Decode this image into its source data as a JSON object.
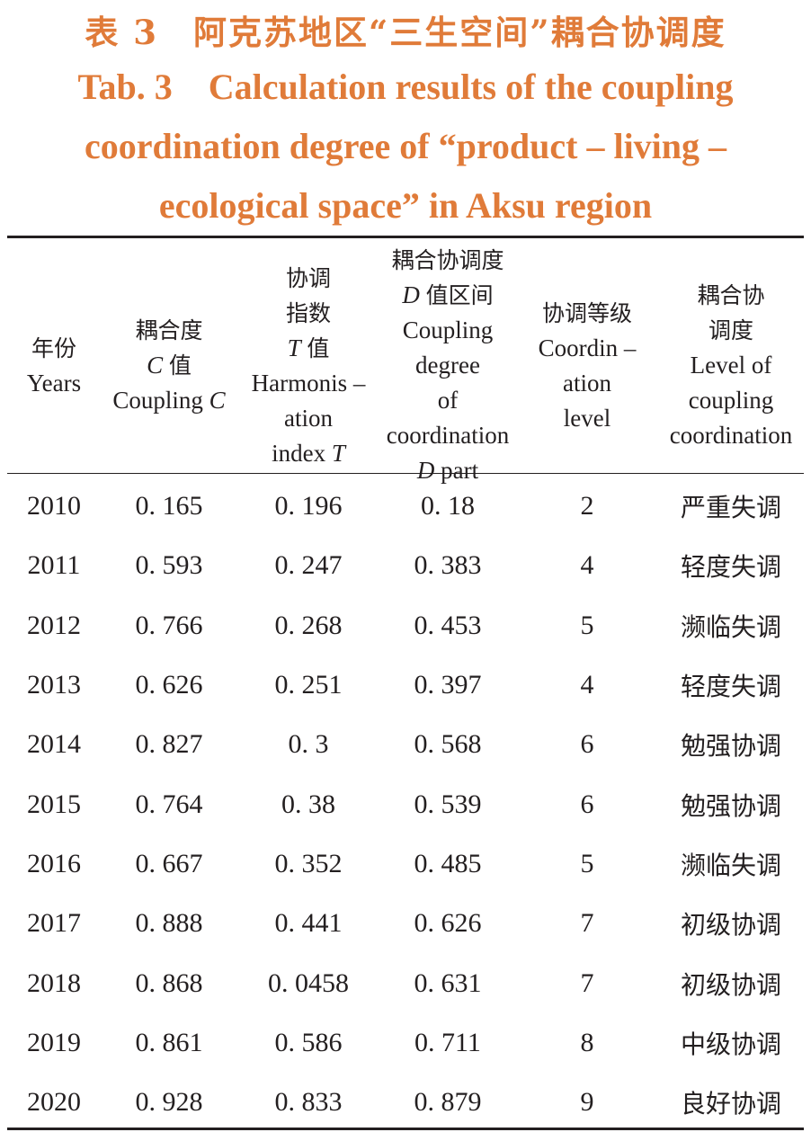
{
  "title": {
    "cn": "表 3　阿克苏地区“三生空间”耦合协调度",
    "en": "Tab. 3　Calculation results of the coupling coordination degree of “product – living – ecological space” in Aksu region"
  },
  "headers": {
    "year": {
      "cn": "年份",
      "en": "Years"
    },
    "coupling": {
      "cn1": "耦合度",
      "var": "C",
      "cn2": "值",
      "en": "Coupling",
      "en_var": "C"
    },
    "harmonization": {
      "cn1": "协调",
      "cn2": "指数",
      "var": "T",
      "cn3": "值",
      "en1": "Harmonis –",
      "en2": "ation",
      "en3": "index",
      "en_var": "T"
    },
    "degree": {
      "cn1": "耦合协调度",
      "var": "D",
      "cn2": "值区间",
      "en1": "Coupling",
      "en2": "degree",
      "en3": "of coordination",
      "en_var": "D",
      "en4": "part"
    },
    "level": {
      "cn": "协调等级",
      "en1": "Coordin –",
      "en2": "ation",
      "en3": "level"
    },
    "coordination": {
      "cn1": "耦合协",
      "cn2": "调度",
      "en1": "Level of",
      "en2": "coupling",
      "en3": "coordination"
    }
  },
  "rows": [
    {
      "year": "2010",
      "c": "0. 165",
      "t": "0. 196",
      "d": "0. 18",
      "level": "2",
      "type": "严重失调"
    },
    {
      "year": "2011",
      "c": "0. 593",
      "t": "0. 247",
      "d": "0. 383",
      "level": "4",
      "type": "轻度失调"
    },
    {
      "year": "2012",
      "c": "0. 766",
      "t": "0. 268",
      "d": "0. 453",
      "level": "5",
      "type": "濒临失调"
    },
    {
      "year": "2013",
      "c": "0. 626",
      "t": "0. 251",
      "d": "0. 397",
      "level": "4",
      "type": "轻度失调"
    },
    {
      "year": "2014",
      "c": "0. 827",
      "t": "0. 3",
      "d": "0. 568",
      "level": "6",
      "type": "勉强协调"
    },
    {
      "year": "2015",
      "c": "0. 764",
      "t": "0. 38",
      "d": "0. 539",
      "level": "6",
      "type": "勉强协调"
    },
    {
      "year": "2016",
      "c": "0. 667",
      "t": "0. 352",
      "d": "0. 485",
      "level": "5",
      "type": "濒临失调"
    },
    {
      "year": "2017",
      "c": "0. 888",
      "t": "0. 441",
      "d": "0. 626",
      "level": "7",
      "type": "初级协调"
    },
    {
      "year": "2018",
      "c": "0. 868",
      "t": "0. 0458",
      "d": "0. 631",
      "level": "7",
      "type": "初级协调"
    },
    {
      "year": "2019",
      "c": "0. 861",
      "t": "0. 586",
      "d": "0. 711",
      "level": "8",
      "type": "中级协调"
    },
    {
      "year": "2020",
      "c": "0. 928",
      "t": "0. 833",
      "d": "0. 879",
      "level": "9",
      "type": "良好协调"
    }
  ],
  "colors": {
    "title": "#e07b39",
    "text": "#231f20",
    "rule": "#231f20"
  }
}
